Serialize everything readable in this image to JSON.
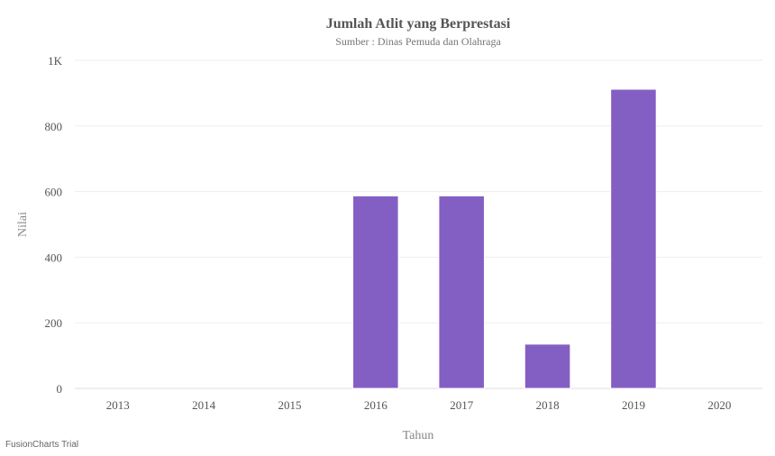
{
  "chart_data": {
    "type": "bar",
    "title": "Jumlah Atlit yang Berprestasi",
    "subtitle": "Sumber : Dinas Pemuda dan Olahraga",
    "xlabel": "Tahun",
    "ylabel": "Nilai",
    "categories": [
      "2013",
      "2014",
      "2015",
      "2016",
      "2017",
      "2018",
      "2019",
      "2020"
    ],
    "values": [
      0,
      0,
      0,
      587,
      587,
      135,
      912,
      0
    ],
    "ylim": [
      0,
      1000
    ],
    "yticks": [
      {
        "value": 0,
        "label": "0"
      },
      {
        "value": 200,
        "label": "200"
      },
      {
        "value": 400,
        "label": "400"
      },
      {
        "value": 600,
        "label": "600"
      },
      {
        "value": 800,
        "label": "800"
      },
      {
        "value": 1000,
        "label": "1K"
      }
    ],
    "grid": true,
    "bar_color": "#845fc3"
  },
  "watermark": "FusionCharts Trial"
}
